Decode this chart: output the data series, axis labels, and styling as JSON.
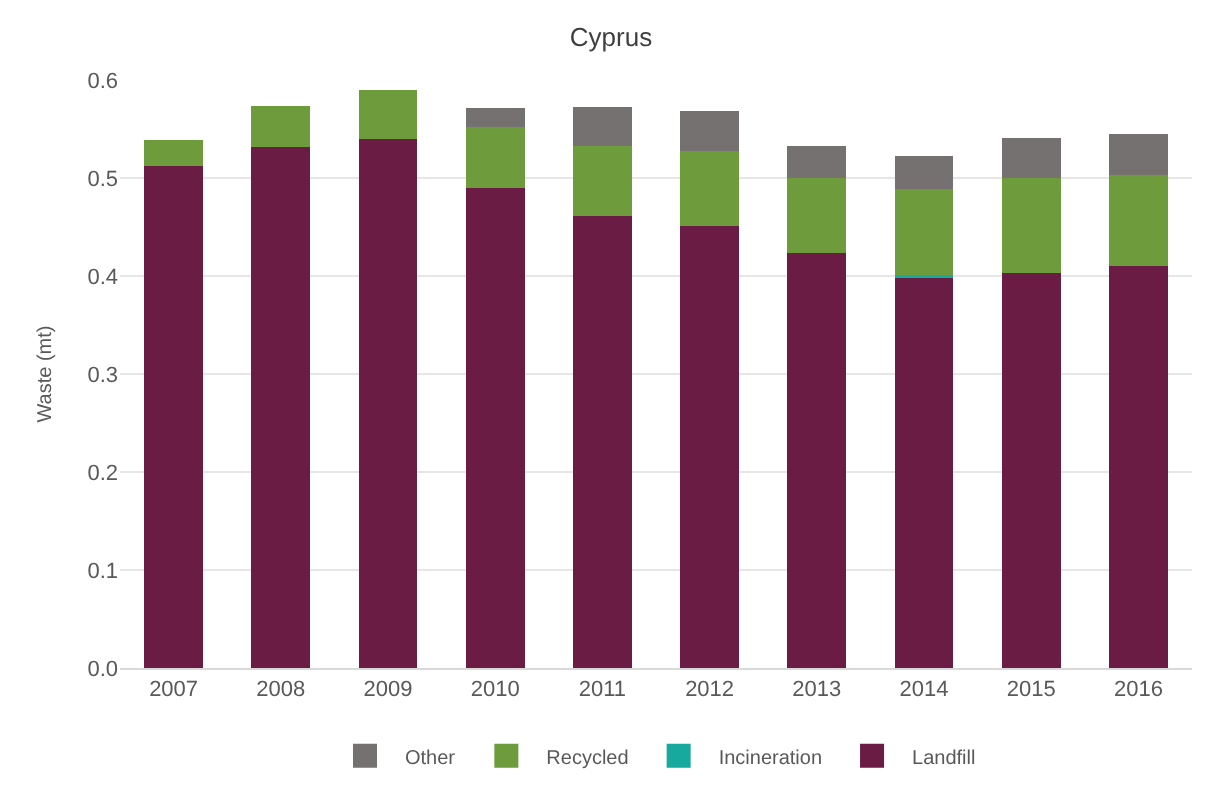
{
  "chart_data": {
    "type": "bar",
    "title": "Cyprus",
    "ylabel": "Waste (mt)",
    "stacked": true,
    "categories": [
      "2007",
      "2008",
      "2009",
      "2010",
      "2011",
      "2012",
      "2013",
      "2014",
      "2015",
      "2016"
    ],
    "series": [
      {
        "name": "Landfill",
        "color": "#6b1c45",
        "values": [
          0.512,
          0.532,
          0.54,
          0.49,
          0.461,
          0.451,
          0.423,
          0.398,
          0.403,
          0.41
        ]
      },
      {
        "name": "Incineration",
        "color": "#17a89e",
        "values": [
          0,
          0,
          0,
          0,
          0,
          0,
          0,
          0.003,
          0,
          0
        ]
      },
      {
        "name": "Recycled",
        "color": "#6e9c3c",
        "values": [
          0.027,
          0.041,
          0.05,
          0.062,
          0.072,
          0.077,
          0.077,
          0.088,
          0.097,
          0.093
        ]
      },
      {
        "name": "Other",
        "color": "#767171",
        "values": [
          0,
          0,
          0,
          0.019,
          0.039,
          0.04,
          0.033,
          0.033,
          0.041,
          0.042
        ]
      }
    ],
    "ylim": [
      0,
      0.6
    ],
    "yticks": [
      {
        "value": 0,
        "label": "0.0"
      },
      0.1,
      0.2,
      0.3,
      0.4,
      0.5,
      0.6
    ],
    "grid": "y",
    "legend": "bottom"
  }
}
